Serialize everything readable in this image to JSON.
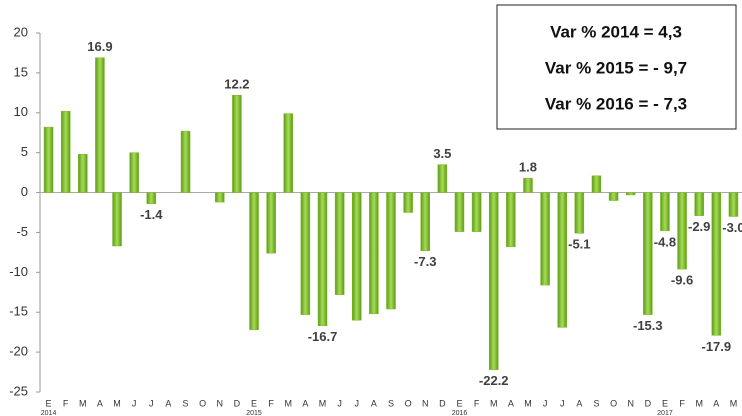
{
  "chart_data": {
    "type": "bar",
    "categories": [
      "E",
      "F",
      "M",
      "A",
      "M",
      "J",
      "J",
      "A",
      "S",
      "O",
      "N",
      "D",
      "E",
      "F",
      "M",
      "A",
      "M",
      "J",
      "J",
      "A",
      "S",
      "O",
      "N",
      "D",
      "E",
      "F",
      "M",
      "A",
      "M",
      "J",
      "J",
      "A",
      "S",
      "O",
      "N",
      "D",
      "E",
      "F",
      "M",
      "A",
      "M"
    ],
    "years": [
      "2014",
      "2015",
      "2016",
      "2017"
    ],
    "values": [
      8.2,
      10.2,
      4.8,
      16.9,
      -6.7,
      5.0,
      -1.4,
      0,
      7.7,
      0,
      -1.2,
      12.2,
      -17.2,
      -7.6,
      9.9,
      -15.3,
      -16.7,
      -12.8,
      -16.0,
      -15.2,
      -14.6,
      -2.5,
      -7.3,
      3.5,
      -4.9,
      -4.9,
      -22.2,
      -6.8,
      1.8,
      -11.6,
      -16.9,
      -5.1,
      2.1,
      -1.0,
      -0.3,
      -15.3,
      -4.8,
      -9.6,
      -2.9,
      -17.9,
      -3.0
    ],
    "value_labels": [
      null,
      null,
      null,
      "16.9",
      null,
      null,
      "-1.4",
      null,
      null,
      null,
      null,
      "12.2",
      null,
      null,
      null,
      null,
      "-16.7",
      null,
      null,
      null,
      null,
      null,
      "-7.3",
      "3.5",
      null,
      null,
      "-22.2",
      null,
      "1.8",
      null,
      null,
      "-5.1",
      null,
      null,
      null,
      "-15.3",
      "-4.8",
      "-9.6",
      "-2.9",
      "-17.9",
      "-3.0"
    ],
    "color": "#7ab929",
    "ylim": [
      -25,
      20
    ],
    "yticks": [
      -25,
      -20,
      -15,
      -10,
      -5,
      0,
      5,
      10,
      15,
      20
    ],
    "annotations": [
      "Var % 2014 = 4,3",
      "Var % 2015 = - 9,7",
      "Var % 2016 = - 7,3"
    ]
  }
}
